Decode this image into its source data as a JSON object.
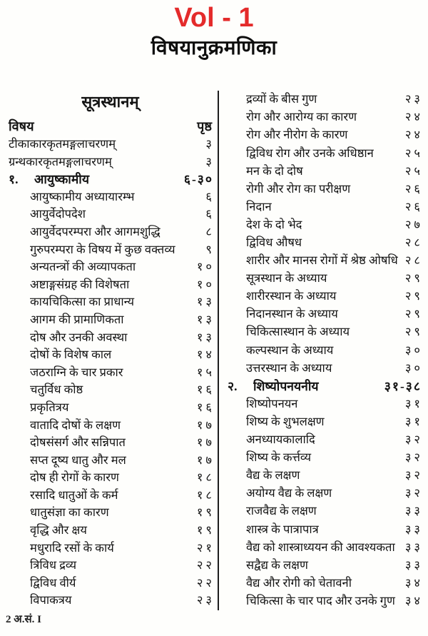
{
  "header": {
    "volume": "Vol - 1",
    "volume_color": "#e42b2b",
    "title": "विषयानुक्रमणिका"
  },
  "left_column": {
    "section_title": "सूत्रस्थानम्",
    "col_subject": "विषय",
    "col_page": "पृष्ठ",
    "rows": [
      {
        "label": "टीकाकारकृतमङ्गलाचरणम्",
        "page": "३",
        "indent": 0
      },
      {
        "label": "ग्रन्थकारकृतमङ्गलाचरणम्",
        "page": "३",
        "indent": 0
      },
      {
        "num": "१.",
        "label": "आयुष्कामीय",
        "page": "६-३०",
        "bold": true
      },
      {
        "label": "आयुष्कामीय अध्यायारम्भ",
        "page": "६",
        "indent": 1
      },
      {
        "label": "आयुर्वेदोपदेश",
        "page": "६",
        "indent": 1
      },
      {
        "label": "आयुर्वेदपरम्परा और आगमशुद्धि",
        "page": "८",
        "indent": 1
      },
      {
        "label": "गुरुपरम्परा के विषय में कुछ वक्तव्य",
        "page": "९",
        "indent": 1
      },
      {
        "label": "अन्यतन्त्रों की अव्यापकता",
        "page": "१०",
        "indent": 1
      },
      {
        "label": "अष्टाङ्गसंग्रह की विशेषता",
        "page": "१०",
        "indent": 1
      },
      {
        "label": "कायचिकित्सा का प्राधान्य",
        "page": "१३",
        "indent": 1
      },
      {
        "label": "आगम की प्रामाणिकता",
        "page": "१३",
        "indent": 1
      },
      {
        "label": "दोष और उनकी अवस्था",
        "page": "१३",
        "indent": 1
      },
      {
        "label": "दोषों के विशेष काल",
        "page": "१४",
        "indent": 1
      },
      {
        "label": "जठराग्नि के चार प्रकार",
        "page": "१५",
        "indent": 1
      },
      {
        "label": "चतुर्विध कोष्ठ",
        "page": "१६",
        "indent": 1
      },
      {
        "label": "प्रकृतित्रय",
        "page": "१६",
        "indent": 1
      },
      {
        "label": "वातादि दोषों के लक्षण",
        "page": "१७",
        "indent": 1
      },
      {
        "label": "दोषसंसर्ग और सन्निपात",
        "page": "१७",
        "indent": 1
      },
      {
        "label": "सप्त दूष्य धातु और मल",
        "page": "१७",
        "indent": 1
      },
      {
        "label": "दोष ही रोगों के कारण",
        "page": "१८",
        "indent": 1
      },
      {
        "label": "रसादि धातुओं के कर्म",
        "page": "१८",
        "indent": 1
      },
      {
        "label": "धातुसंज्ञा का कारण",
        "page": "१९",
        "indent": 1
      },
      {
        "label": "वृद्धि और क्षय",
        "page": "१९",
        "indent": 1
      },
      {
        "label": "मधुरादि रसों के कार्य",
        "page": "२१",
        "indent": 1
      },
      {
        "label": "त्रिविध द्रव्य",
        "page": "२२",
        "indent": 1
      },
      {
        "label": "द्विविध वीर्य",
        "page": "२२",
        "indent": 1
      },
      {
        "label": "विपाकत्रय",
        "page": "२३",
        "indent": 1
      }
    ]
  },
  "right_column": {
    "rows": [
      {
        "label": "द्रव्यों के बीस गुण",
        "page": "२३",
        "indent": 1
      },
      {
        "label": "रोग और आरोग्य का कारण",
        "page": "२४",
        "indent": 1
      },
      {
        "label": "रोग और नीरोग के कारण",
        "page": "२४",
        "indent": 1
      },
      {
        "label": "द्विविध रोग और उनके अधिष्ठान",
        "page": "२५",
        "indent": 1
      },
      {
        "label": "मन के दो दोष",
        "page": "२५",
        "indent": 1
      },
      {
        "label": "रोगी और रोग का परीक्षण",
        "page": "२६",
        "indent": 1
      },
      {
        "label": "निदान",
        "page": "२६",
        "indent": 1
      },
      {
        "label": "देश के दो भेद",
        "page": "२७",
        "indent": 1
      },
      {
        "label": "द्विविध औषध",
        "page": "२८",
        "indent": 1
      },
      {
        "label": "शारीर और मानस रोगों में श्रेष्ठ ओषधि",
        "page": "२८",
        "indent": 1
      },
      {
        "label": "सूत्रस्थान के अध्याय",
        "page": "२९",
        "indent": 1
      },
      {
        "label": "शारीरस्थान के अध्याय",
        "page": "२९",
        "indent": 1
      },
      {
        "label": "निदानस्थान के अध्याय",
        "page": "२९",
        "indent": 1
      },
      {
        "label": "चिकित्सास्थान के अध्याय",
        "page": "२९",
        "indent": 1
      },
      {
        "label": "कल्पस्थान के अध्याय",
        "page": "३०",
        "indent": 1
      },
      {
        "label": "उत्तरस्थान के अध्याय",
        "page": "३०",
        "indent": 1
      },
      {
        "num": "२.",
        "label": "शिष्योपनयनीय",
        "page": "३१-३८",
        "bold": true
      },
      {
        "label": "शिष्योपनयन",
        "page": "३१",
        "indent": 1
      },
      {
        "label": "शिष्य के शुभलक्षण",
        "page": "३१",
        "indent": 1
      },
      {
        "label": "अनध्यायकालादि",
        "page": "३२",
        "indent": 1
      },
      {
        "label": "शिष्य के कर्त्तव्य",
        "page": "३२",
        "indent": 1
      },
      {
        "label": "वैद्य के लक्षण",
        "page": "३२",
        "indent": 1
      },
      {
        "label": "अयोग्य वैद्य के लक्षण",
        "page": "३२",
        "indent": 1
      },
      {
        "label": "राजवैद्य के लक्षण",
        "page": "३३",
        "indent": 1
      },
      {
        "label": "शास्त्र के पात्रापात्र",
        "page": "३३",
        "indent": 1
      },
      {
        "label": "वैद्य को शास्त्राध्ययन की आवश्यकता",
        "page": "३३",
        "indent": 1
      },
      {
        "label": "सद्वैद्य के लक्षण",
        "page": "३३",
        "indent": 1
      },
      {
        "label": "वैद्य और रोगी को चेतावनी",
        "page": "३४",
        "indent": 1
      },
      {
        "label": "चिकित्सा के चार पाद और उनके गुण",
        "page": "३४",
        "indent": 1
      }
    ]
  },
  "footer": {
    "text": "2 अ.सं. I"
  }
}
